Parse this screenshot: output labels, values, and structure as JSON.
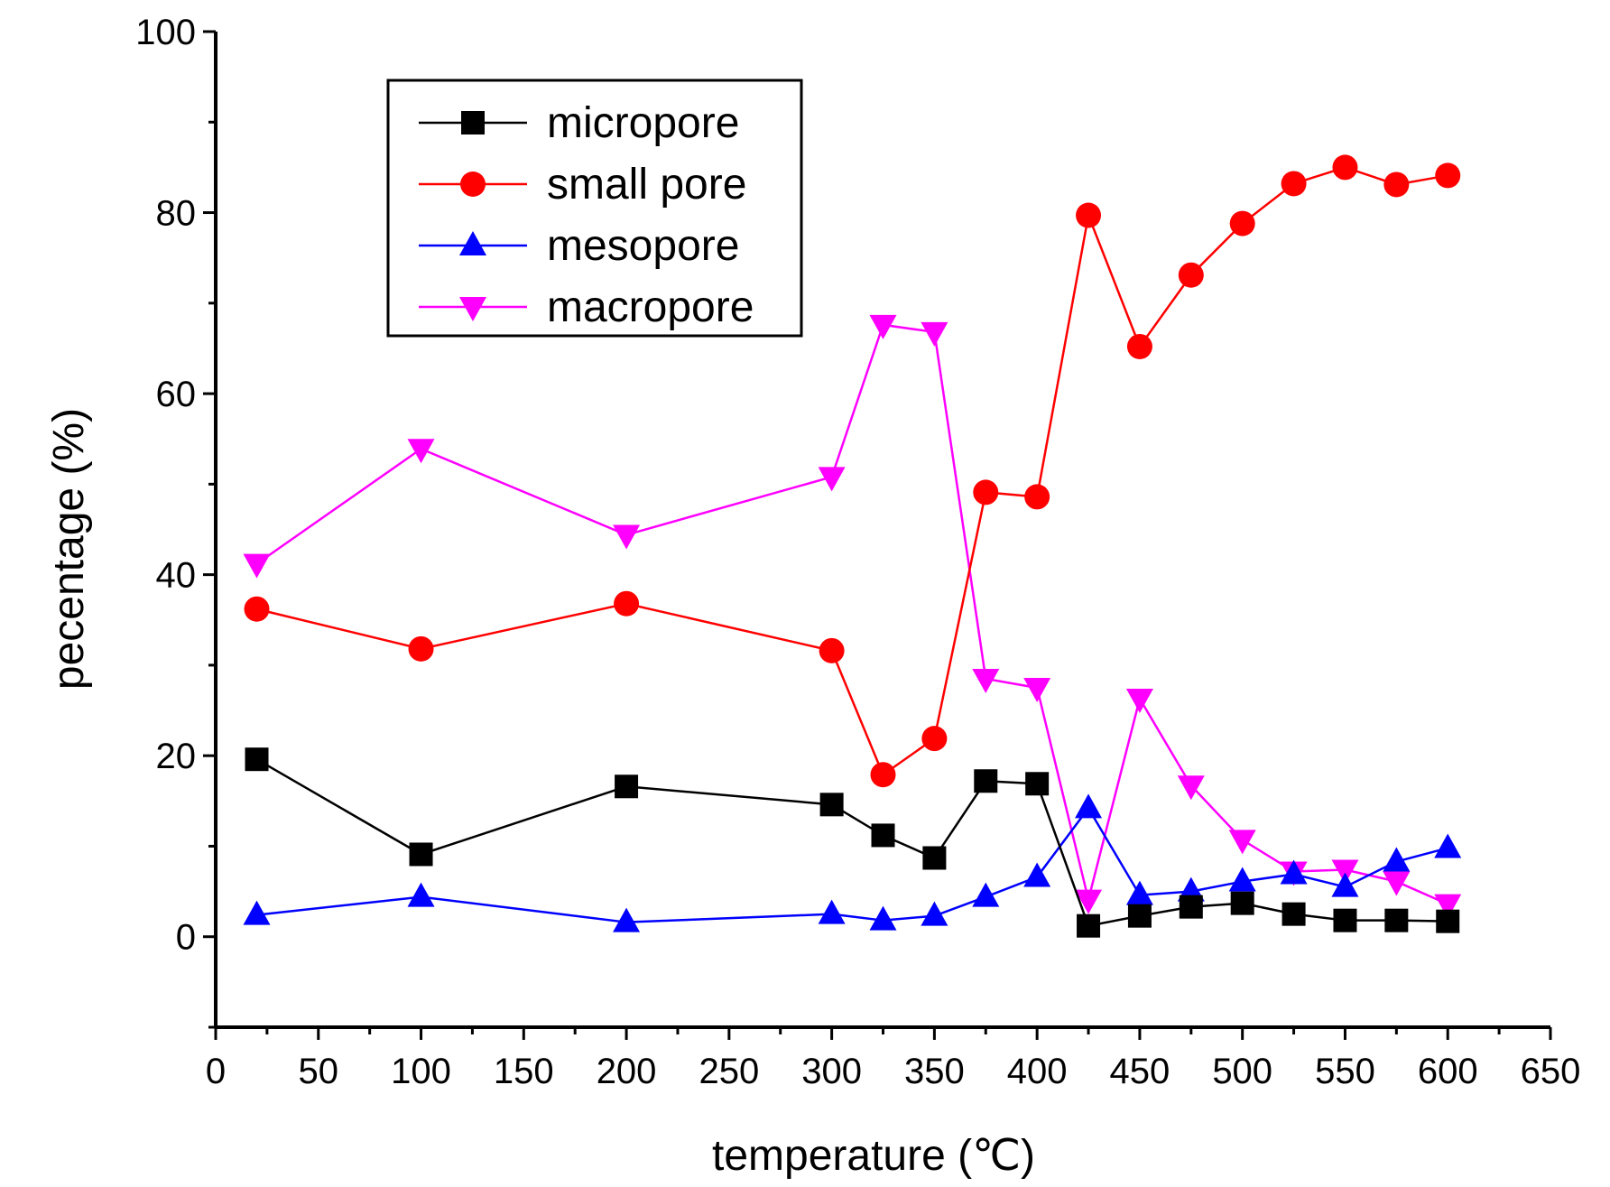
{
  "chart_data": {
    "type": "line",
    "title": "",
    "xlabel": "temperature (℃)",
    "ylabel": "pecentage (%)",
    "xlim": [
      0,
      650
    ],
    "ylim": [
      -10,
      100
    ],
    "xticks": [
      0,
      50,
      100,
      150,
      200,
      250,
      300,
      350,
      400,
      450,
      500,
      550,
      600,
      650
    ],
    "yticks": [
      0,
      20,
      40,
      60,
      80,
      100
    ],
    "grid": false,
    "legend_position": "top-left",
    "x": [
      20,
      100,
      200,
      300,
      325,
      350,
      375,
      400,
      425,
      450,
      475,
      500,
      525,
      550,
      575,
      600
    ],
    "series": [
      {
        "name": "micropore",
        "color": "#000000",
        "marker": "square",
        "values": [
          19.6,
          9.1,
          16.6,
          14.6,
          11.2,
          8.7,
          17.2,
          16.9,
          1.2,
          2.3,
          3.3,
          3.7,
          2.5,
          1.8,
          1.8,
          1.7
        ]
      },
      {
        "name": "small pore",
        "color": "#ff0000",
        "marker": "circle",
        "values": [
          36.2,
          31.8,
          36.8,
          31.6,
          17.9,
          21.9,
          49.1,
          48.6,
          79.7,
          65.2,
          73.1,
          78.8,
          83.2,
          85.0,
          83.1,
          84.1
        ]
      },
      {
        "name": "mesopore",
        "color": "#0000ff",
        "marker": "triangle-up",
        "values": [
          2.4,
          4.4,
          1.6,
          2.5,
          1.8,
          2.3,
          4.4,
          6.6,
          14.2,
          4.6,
          5.0,
          6.1,
          6.9,
          5.5,
          8.3,
          9.8
        ]
      },
      {
        "name": "macropore",
        "color": "#ff00ff",
        "marker": "triangle-down",
        "values": [
          41.2,
          53.9,
          44.4,
          50.8,
          67.6,
          66.8,
          28.5,
          27.5,
          4.1,
          26.3,
          16.7,
          10.7,
          7.2,
          7.4,
          6.1,
          3.6
        ]
      }
    ]
  }
}
